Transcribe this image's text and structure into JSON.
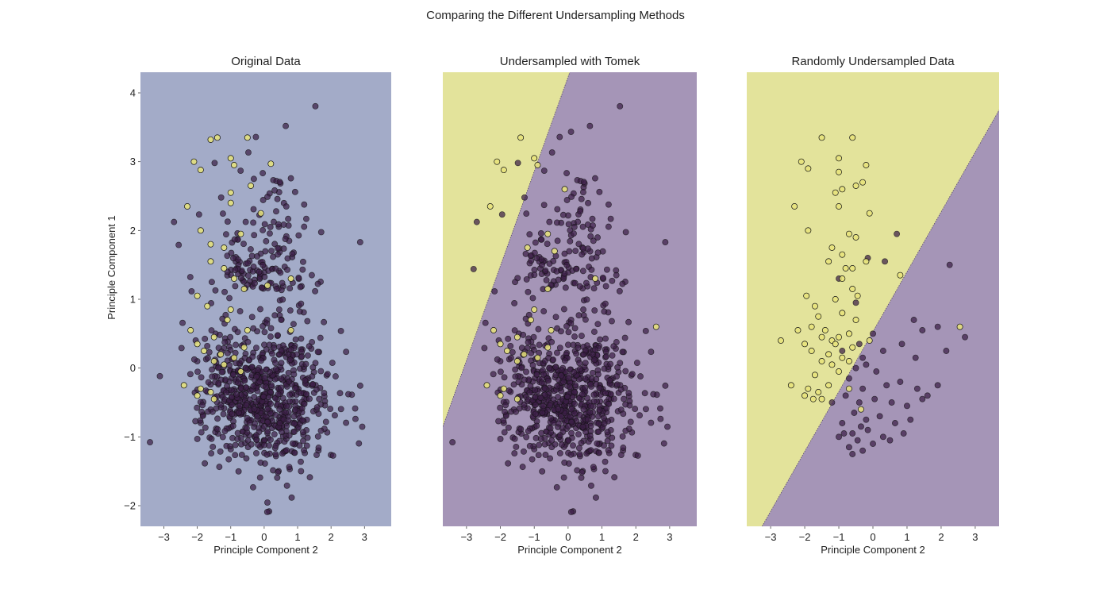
{
  "figure": {
    "title": "Comparing the Different Undersampling Methods"
  },
  "colors": {
    "majority_point": "#3b1f47",
    "minority_point": "#e8e37a",
    "region_uniform": "#a3abc8",
    "region_majority": "#a595b7",
    "region_minority": "#e3e39b",
    "point_edge": "#111111"
  },
  "chart_data": [
    {
      "type": "scatter",
      "title": "Original Data",
      "xlabel": "Principle Component 2",
      "ylabel": "Principle Component 1",
      "xlim": [
        -3.7,
        3.8
      ],
      "ylim": [
        -2.3,
        4.3
      ],
      "xticks": [
        -3,
        -2,
        -1,
        0,
        1,
        2,
        3
      ],
      "yticks": [
        -2,
        -1,
        0,
        1,
        2,
        3,
        4
      ],
      "background": "uniform",
      "majority_cloud": {
        "n": 720,
        "center": [
          0.0,
          -0.35
        ],
        "spread": [
          0.95,
          0.55
        ],
        "tail_n": 160,
        "tail_center": [
          0.0,
          1.4
        ],
        "tail_spread": [
          0.85,
          0.8
        ],
        "seed": 7
      },
      "minority_points": [
        [
          -1.4,
          3.35
        ],
        [
          -0.5,
          3.35
        ],
        [
          -1.6,
          3.32
        ],
        [
          -2.1,
          3.0
        ],
        [
          -1.0,
          3.05
        ],
        [
          -0.9,
          2.95
        ],
        [
          0.2,
          2.97
        ],
        [
          -1.9,
          2.88
        ],
        [
          -0.4,
          2.65
        ],
        [
          -1.0,
          2.55
        ],
        [
          -1.0,
          2.4
        ],
        [
          -2.3,
          2.35
        ],
        [
          -0.1,
          2.25
        ],
        [
          -1.9,
          2.0
        ],
        [
          -0.7,
          1.95
        ],
        [
          -1.6,
          1.8
        ],
        [
          -1.2,
          1.75
        ],
        [
          -1.6,
          1.55
        ],
        [
          -1.2,
          1.45
        ],
        [
          -0.9,
          1.3
        ],
        [
          0.1,
          1.2
        ],
        [
          0.8,
          1.3
        ],
        [
          -0.6,
          1.15
        ],
        [
          -2.0,
          1.05
        ],
        [
          -1.7,
          0.9
        ],
        [
          -1.0,
          0.85
        ],
        [
          -1.1,
          0.7
        ],
        [
          -2.2,
          0.55
        ],
        [
          -0.5,
          0.55
        ],
        [
          -1.5,
          0.45
        ],
        [
          -2.0,
          0.35
        ],
        [
          -0.6,
          0.3
        ],
        [
          -1.8,
          0.25
        ],
        [
          -1.3,
          0.2
        ],
        [
          -0.9,
          0.15
        ],
        [
          -1.5,
          0.1
        ],
        [
          -2.4,
          -0.25
        ],
        [
          -1.9,
          -0.3
        ],
        [
          -1.6,
          -0.35
        ],
        [
          -2.0,
          -0.4
        ],
        [
          -1.5,
          -0.45
        ],
        [
          -1.2,
          0.05
        ],
        [
          -0.7,
          -0.05
        ],
        [
          0.8,
          0.55
        ]
      ]
    },
    {
      "type": "scatter",
      "title": "Undersampled with Tomek",
      "xlabel": "Principle Component 2",
      "ylabel": "",
      "xlim": [
        -3.7,
        3.8
      ],
      "ylim": [
        -2.3,
        4.3
      ],
      "xticks": [
        -3,
        -2,
        -1,
        0,
        1,
        2,
        3
      ],
      "yticks": [],
      "background": "split",
      "boundary": [
        [
          -3.7,
          -0.85
        ],
        [
          0.05,
          4.3
        ]
      ],
      "majority_cloud": {
        "n": 690,
        "center": [
          0.0,
          -0.35
        ],
        "spread": [
          0.95,
          0.55
        ],
        "tail_n": 150,
        "tail_center": [
          0.0,
          1.4
        ],
        "tail_spread": [
          0.85,
          0.8
        ],
        "seed": 7
      },
      "minority_points": [
        [
          -1.4,
          3.35
        ],
        [
          -2.1,
          3.0
        ],
        [
          -1.9,
          2.88
        ],
        [
          -2.3,
          2.35
        ],
        [
          -1.0,
          3.05
        ],
        [
          -0.9,
          2.95
        ],
        [
          -0.1,
          2.6
        ],
        [
          -0.6,
          1.95
        ],
        [
          -1.2,
          1.75
        ],
        [
          -0.4,
          1.7
        ],
        [
          0.8,
          1.3
        ],
        [
          -0.6,
          1.15
        ],
        [
          -1.0,
          0.85
        ],
        [
          -1.1,
          0.7
        ],
        [
          -2.2,
          0.55
        ],
        [
          -0.5,
          0.55
        ],
        [
          -1.5,
          0.45
        ],
        [
          -2.0,
          0.35
        ],
        [
          -0.6,
          0.3
        ],
        [
          -1.8,
          0.25
        ],
        [
          -1.3,
          0.2
        ],
        [
          -0.9,
          0.15
        ],
        [
          -1.5,
          0.1
        ],
        [
          -2.4,
          -0.25
        ],
        [
          -1.9,
          -0.3
        ],
        [
          -2.0,
          -0.4
        ],
        [
          -1.5,
          -0.45
        ],
        [
          2.6,
          0.6
        ]
      ]
    },
    {
      "type": "scatter",
      "title": "Randomly Undersampled Data",
      "xlabel": "Principle Component 2",
      "ylabel": "",
      "xlim": [
        -3.7,
        3.7
      ],
      "ylim": [
        -2.3,
        4.3
      ],
      "xticks": [
        -3,
        -2,
        -1,
        0,
        1,
        2,
        3
      ],
      "yticks": [],
      "background": "split",
      "boundary": [
        [
          -3.25,
          -2.3
        ],
        [
          3.7,
          3.75
        ]
      ],
      "majority_points": [
        [
          0.7,
          1.95
        ],
        [
          -0.15,
          1.6
        ],
        [
          0.35,
          1.55
        ],
        [
          -1.0,
          1.3
        ],
        [
          -0.5,
          0.95
        ],
        [
          2.25,
          1.5
        ],
        [
          1.2,
          0.7
        ],
        [
          1.45,
          0.55
        ],
        [
          1.9,
          0.6
        ],
        [
          2.7,
          0.45
        ],
        [
          0.0,
          0.5
        ],
        [
          -0.4,
          0.35
        ],
        [
          -0.9,
          0.25
        ],
        [
          -0.3,
          0.15
        ],
        [
          0.3,
          0.25
        ],
        [
          0.85,
          0.35
        ],
        [
          1.25,
          0.15
        ],
        [
          2.15,
          0.25
        ],
        [
          -0.2,
          0.05
        ],
        [
          -0.5,
          0.0
        ],
        [
          0.1,
          -0.05
        ],
        [
          -0.7,
          -0.15
        ],
        [
          -0.3,
          -0.3
        ],
        [
          0.4,
          -0.25
        ],
        [
          0.8,
          -0.2
        ],
        [
          1.3,
          -0.3
        ],
        [
          1.6,
          -0.4
        ],
        [
          1.9,
          -0.25
        ],
        [
          -0.8,
          -0.4
        ],
        [
          -0.4,
          -0.5
        ],
        [
          0.05,
          -0.45
        ],
        [
          0.55,
          -0.5
        ],
        [
          1.0,
          -0.55
        ],
        [
          1.45,
          -0.45
        ],
        [
          -1.2,
          -0.5
        ],
        [
          -0.55,
          -0.65
        ],
        [
          -0.2,
          -0.75
        ],
        [
          0.2,
          -0.7
        ],
        [
          0.65,
          -0.8
        ],
        [
          1.1,
          -0.75
        ],
        [
          -0.9,
          -0.8
        ],
        [
          -0.6,
          -0.95
        ],
        [
          -0.15,
          -0.9
        ],
        [
          0.3,
          -1.0
        ],
        [
          -1.0,
          -1.0
        ],
        [
          -0.45,
          -1.05
        ],
        [
          0.0,
          -1.1
        ],
        [
          0.5,
          -1.05
        ],
        [
          -0.7,
          -1.15
        ],
        [
          -0.3,
          -1.2
        ],
        [
          -0.6,
          -1.25
        ],
        [
          -0.85,
          -0.95
        ],
        [
          0.9,
          -0.95
        ],
        [
          -0.35,
          -0.85
        ]
      ],
      "minority_points": [
        [
          -1.5,
          3.35
        ],
        [
          -0.6,
          3.35
        ],
        [
          -2.1,
          3.0
        ],
        [
          -1.9,
          2.9
        ],
        [
          -1.0,
          3.05
        ],
        [
          -0.2,
          2.95
        ],
        [
          -1.0,
          2.85
        ],
        [
          -0.5,
          2.65
        ],
        [
          -0.3,
          2.7
        ],
        [
          -1.1,
          2.55
        ],
        [
          -0.9,
          2.6
        ],
        [
          -2.3,
          2.35
        ],
        [
          -1.0,
          2.35
        ],
        [
          -0.1,
          2.25
        ],
        [
          -1.9,
          2.0
        ],
        [
          -0.7,
          1.95
        ],
        [
          -0.5,
          1.9
        ],
        [
          -1.2,
          1.75
        ],
        [
          -0.9,
          1.65
        ],
        [
          -0.2,
          1.55
        ],
        [
          -1.3,
          1.55
        ],
        [
          -0.8,
          1.45
        ],
        [
          -0.6,
          1.45
        ],
        [
          -0.9,
          1.3
        ],
        [
          0.8,
          1.35
        ],
        [
          -0.6,
          1.15
        ],
        [
          -1.95,
          1.05
        ],
        [
          -1.7,
          0.9
        ],
        [
          -1.1,
          1.0
        ],
        [
          -0.45,
          1.05
        ],
        [
          -1.6,
          0.75
        ],
        [
          -0.9,
          0.8
        ],
        [
          -0.5,
          0.7
        ],
        [
          -2.2,
          0.55
        ],
        [
          -1.8,
          0.6
        ],
        [
          -1.4,
          0.55
        ],
        [
          -0.7,
          0.5
        ],
        [
          -1.5,
          0.45
        ],
        [
          -2.0,
          0.35
        ],
        [
          -1.2,
          0.4
        ],
        [
          -0.6,
          0.3
        ],
        [
          -1.8,
          0.25
        ],
        [
          -1.3,
          0.2
        ],
        [
          -0.9,
          0.15
        ],
        [
          -1.5,
          0.1
        ],
        [
          -1.1,
          0.35
        ],
        [
          -0.7,
          0.1
        ],
        [
          -2.4,
          -0.25
        ],
        [
          -1.9,
          -0.3
        ],
        [
          -1.6,
          -0.35
        ],
        [
          -2.0,
          -0.4
        ],
        [
          -1.5,
          -0.45
        ],
        [
          -1.2,
          0.05
        ],
        [
          -1.0,
          -0.05
        ],
        [
          -0.7,
          -0.3
        ],
        [
          -1.7,
          -0.1
        ],
        [
          -1.3,
          -0.25
        ],
        [
          -1.75,
          -0.45
        ],
        [
          -0.35,
          -0.6
        ],
        [
          -0.1,
          0.4
        ],
        [
          2.55,
          0.6
        ],
        [
          -2.7,
          0.4
        ],
        [
          -1.0,
          0.45
        ]
      ]
    }
  ]
}
